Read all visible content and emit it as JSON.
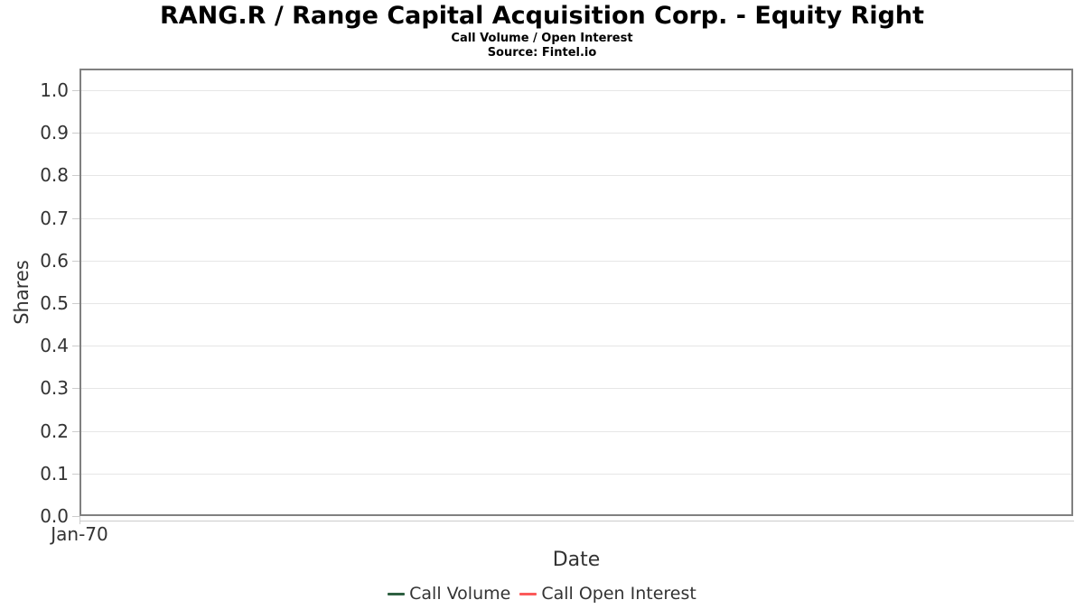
{
  "chart_data": {
    "type": "line",
    "title": "RANG.R / Range Capital Acquisition Corp. - Equity Right",
    "subtitle": "Call Volume / Open Interest",
    "source": "Source: Fintel.io",
    "xlabel": "Date",
    "ylabel": "Shares",
    "x_ticks": [
      "Jan-70"
    ],
    "y_ticks": [
      "0.0",
      "0.1",
      "0.2",
      "0.3",
      "0.4",
      "0.5",
      "0.6",
      "0.7",
      "0.8",
      "0.9",
      "1.0"
    ],
    "ylim": [
      0.0,
      1.05
    ],
    "grid": true,
    "legend_position": "bottom",
    "series": [
      {
        "name": "Call Volume",
        "color": "#2e6041",
        "x": [],
        "values": []
      },
      {
        "name": "Call Open Interest",
        "color": "#fb5a5a",
        "x": [],
        "values": []
      }
    ],
    "plot_empty": true
  },
  "colors": {
    "title_text": "#000000",
    "text": "#333333",
    "grid": "#e6e6e6",
    "plot_border": "#808080",
    "axis_line": "#cccccc"
  }
}
